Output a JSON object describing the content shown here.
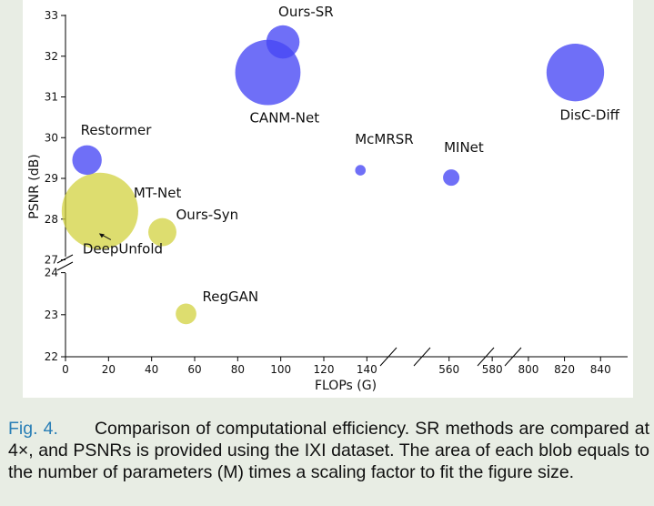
{
  "chart_data": {
    "type": "scatter",
    "subtype": "bubble",
    "xlabel": "FLOPs (G)",
    "ylabel": "PSNR (dB)",
    "x_segments": [
      {
        "range": [
          0,
          150
        ],
        "ticks": [
          0,
          20,
          40,
          60,
          80,
          100,
          120,
          140
        ]
      },
      {
        "range": [
          550,
          585
        ],
        "ticks": [
          560,
          580
        ]
      },
      {
        "range": [
          795,
          855
        ],
        "ticks": [
          800,
          820,
          840
        ]
      }
    ],
    "y_segments": [
      {
        "range": [
          22,
          24.1
        ],
        "ticks": [
          22,
          23,
          24
        ]
      },
      {
        "range": [
          26.9,
          33
        ],
        "ticks": [
          27,
          28,
          29,
          30,
          31,
          32,
          33
        ]
      }
    ],
    "colors": {
      "sr": "#4b4bf2",
      "syn": "#d2d23c",
      "panel": "#ffffff",
      "page": "#e8ede4",
      "caption_label": "#2a7fb6"
    },
    "points": [
      {
        "label": "Ours-SR",
        "x": 101,
        "y": 32.35,
        "group": "sr",
        "params": 0.7
      },
      {
        "label": "CANM-Net",
        "x": 94,
        "y": 31.6,
        "group": "sr",
        "params": 2.7
      },
      {
        "label": "DisC-Diff",
        "x": 826,
        "y": 31.6,
        "group": "sr",
        "params": 2.1
      },
      {
        "label": "Restormer",
        "x": 10,
        "y": 29.45,
        "group": "sr",
        "params": 0.55
      },
      {
        "label": "McMRSR",
        "x": 137,
        "y": 29.2,
        "group": "sr",
        "params": 0.07
      },
      {
        "label": "MINet",
        "x": 561,
        "y": 29.02,
        "group": "sr",
        "params": 0.17
      },
      {
        "label": "MT-Net",
        "x": 16,
        "y": 28.2,
        "group": "syn",
        "params": 3.7
      },
      {
        "label": "Ours-Syn",
        "x": 45,
        "y": 27.68,
        "group": "syn",
        "params": 0.5
      },
      {
        "label": "DeepUnfold",
        "x": 16,
        "y": 27.65,
        "group": "syn",
        "params": 0.0,
        "arrow": true
      },
      {
        "label": "RegGAN",
        "x": 56,
        "y": 23.02,
        "group": "syn",
        "params": 0.27
      }
    ]
  },
  "caption": {
    "label": "Fig. 4.",
    "text": "Comparison of computational efficiency. SR methods are compared at 4×, and PSNRs is provided using the IXI dataset. The area of each blob equals to the number of parameters (M) times a scaling factor to fit the figure size."
  }
}
